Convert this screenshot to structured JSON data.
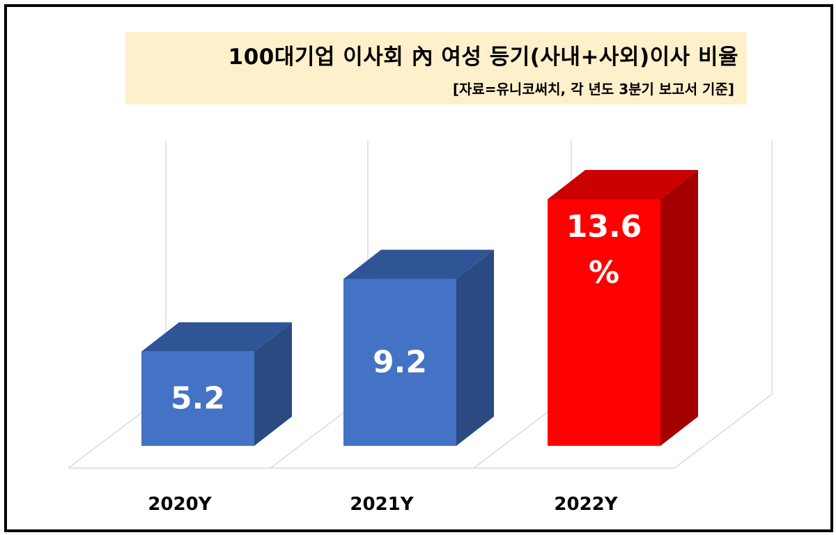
{
  "chart_data": {
    "type": "bar",
    "title": "100대기업 이사회 內 여성 등기(사내+사외)이사 비율",
    "subtitle": "[자료=유니코써치, 각 년도 3분기 보고서 기준]",
    "categories": [
      "2020Y",
      "2021Y",
      "2022Y"
    ],
    "values": [
      5.2,
      9.2,
      13.6
    ],
    "data_labels": [
      "5.2",
      "9.2",
      "13.6 %"
    ],
    "bar_colors": [
      "#4472c4",
      "#4472c4",
      "#ff0000"
    ],
    "top_colors": [
      "#2f5597",
      "#2f5597",
      "#cc0000"
    ],
    "side_colors": [
      "#2b4a82",
      "#2b4a82",
      "#a50000"
    ],
    "label_color": "#ffffff",
    "title_background": "#fff0cc",
    "style": "3d-column",
    "ylim": [
      0,
      15
    ],
    "grid": true,
    "legend": "none"
  }
}
